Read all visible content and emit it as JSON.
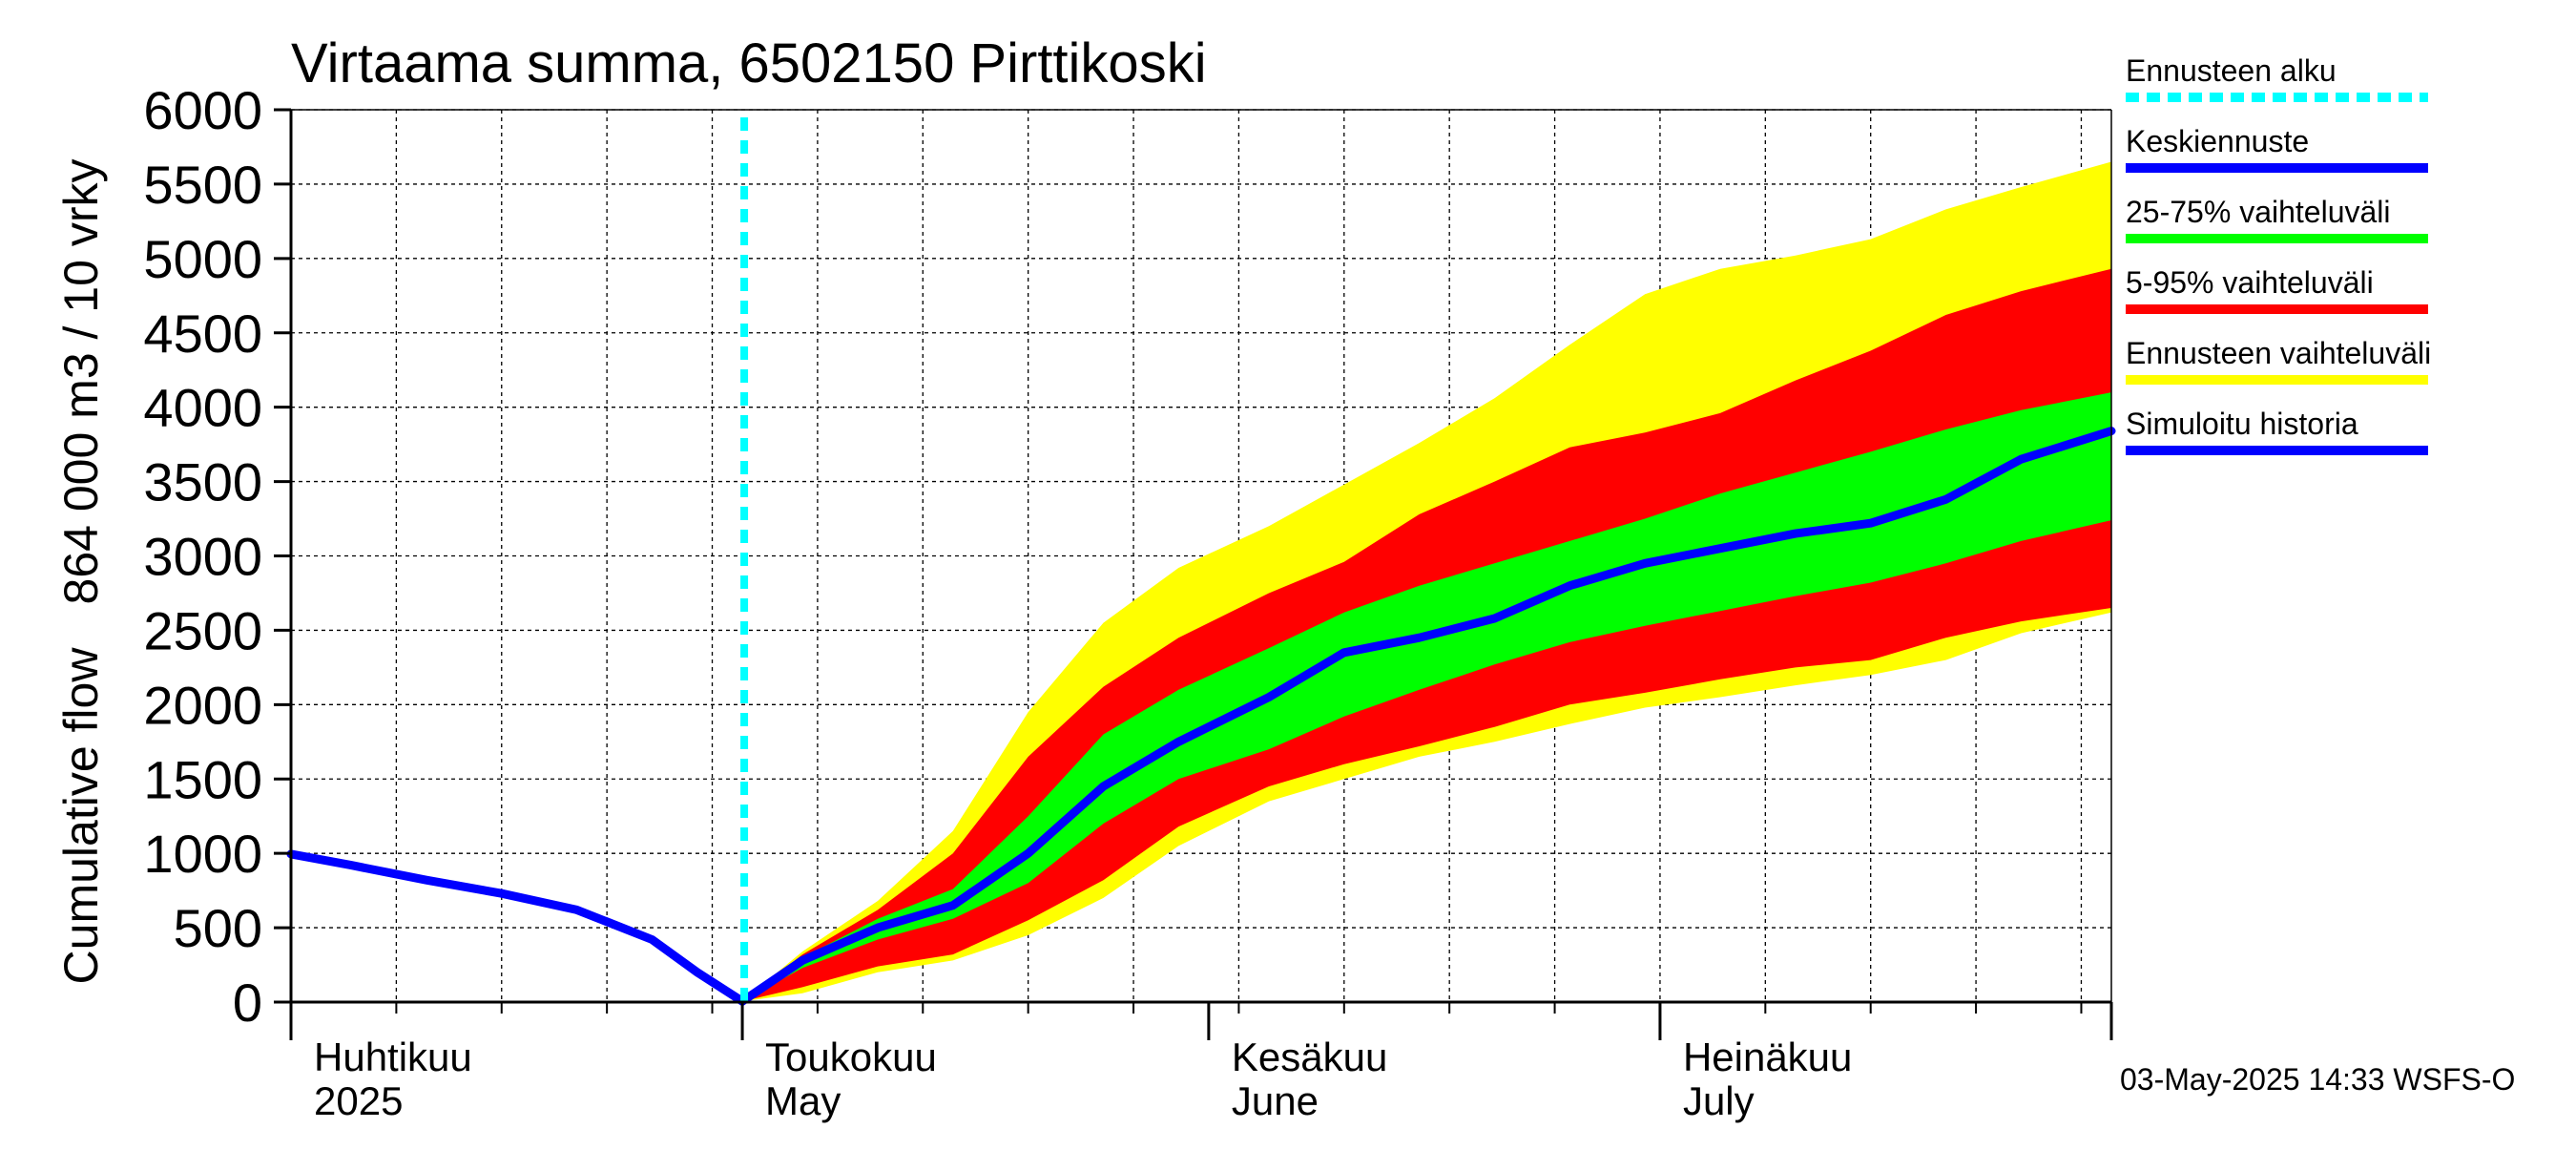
{
  "chart_data": {
    "type": "area",
    "title": "Virtaama summa, 6502150 Pirttikoski",
    "ylabel_line1": "Cumulative flow",
    "ylabel_line2": "864 000 m3 / 10 vrky",
    "ylim": [
      0,
      6000
    ],
    "y_ticks": [
      0,
      500,
      1000,
      1500,
      2000,
      2500,
      3000,
      3500,
      4000,
      4500,
      5000,
      5500,
      6000
    ],
    "x_range": [
      "2025-04-01",
      "2025-07-31"
    ],
    "grid": true,
    "months": [
      {
        "label_fi": "Huhtikuu",
        "label_en": "2025",
        "start": "2025-04-01"
      },
      {
        "label_fi": "Toukokuu",
        "label_en": "May",
        "start": "2025-05-01"
      },
      {
        "label_fi": "Kesäkuu",
        "label_en": "June",
        "start": "2025-06-01"
      },
      {
        "label_fi": "Heinäkuu",
        "label_en": "July",
        "start": "2025-07-01"
      }
    ],
    "forecast_start": "2025-05-01",
    "colors": {
      "forecast_start": "#00ffff",
      "mean": "#0000ff",
      "p25_75": "#00ff00",
      "p5_95": "#ff0000",
      "full_range": "#ffff00",
      "history": "#0000ff"
    },
    "simulated_history": {
      "dates": [
        "2025-04-01",
        "2025-04-05",
        "2025-04-10",
        "2025-04-15",
        "2025-04-20",
        "2025-04-25",
        "2025-04-28",
        "2025-05-01"
      ],
      "values": [
        995,
        920,
        820,
        730,
        620,
        420,
        200,
        5
      ]
    },
    "forecast": {
      "dates": [
        "2025-05-01",
        "2025-05-05",
        "2025-05-10",
        "2025-05-15",
        "2025-05-20",
        "2025-05-25",
        "2025-05-30",
        "2025-06-05",
        "2025-06-10",
        "2025-06-15",
        "2025-06-20",
        "2025-06-25",
        "2025-06-30",
        "2025-07-05",
        "2025-07-10",
        "2025-07-15",
        "2025-07-20",
        "2025-07-25",
        "2025-07-31"
      ],
      "mean": [
        5,
        280,
        500,
        650,
        1000,
        1450,
        1750,
        2050,
        2350,
        2450,
        2580,
        2800,
        2950,
        3050,
        3150,
        3220,
        3380,
        3650,
        3840
      ],
      "p25": [
        5,
        230,
        420,
        560,
        800,
        1200,
        1500,
        1700,
        1920,
        2100,
        2270,
        2420,
        2530,
        2630,
        2730,
        2820,
        2950,
        3100,
        3240
      ],
      "p75": [
        5,
        300,
        560,
        760,
        1250,
        1800,
        2100,
        2380,
        2620,
        2800,
        2950,
        3100,
        3250,
        3420,
        3560,
        3700,
        3850,
        3980,
        4100
      ],
      "p5": [
        5,
        100,
        240,
        320,
        550,
        820,
        1180,
        1450,
        1600,
        1720,
        1850,
        2000,
        2080,
        2170,
        2250,
        2300,
        2450,
        2560,
        2650
      ],
      "p95": [
        5,
        320,
        620,
        1000,
        1650,
        2120,
        2450,
        2750,
        2960,
        3280,
        3500,
        3730,
        3830,
        3960,
        4180,
        4380,
        4620,
        4780,
        4930
      ],
      "min": [
        5,
        60,
        200,
        280,
        450,
        700,
        1050,
        1350,
        1500,
        1650,
        1750,
        1870,
        1980,
        2050,
        2130,
        2200,
        2300,
        2480,
        2620
      ],
      "max": [
        5,
        340,
        680,
        1150,
        1950,
        2550,
        2920,
        3200,
        3480,
        3760,
        4060,
        4420,
        4760,
        4930,
        5020,
        5130,
        5330,
        5480,
        5650
      ]
    }
  },
  "legend": [
    {
      "label": "Ennusteen alku",
      "color": "#00ffff",
      "style": "dashed"
    },
    {
      "label": "Keskiennuste",
      "color": "#0000ff",
      "style": "solid"
    },
    {
      "label": "25-75% vaihteluväli",
      "color": "#00ff00",
      "style": "solid"
    },
    {
      "label": "5-95% vaihteluväli",
      "color": "#ff0000",
      "style": "solid"
    },
    {
      "label": "Ennusteen vaihteluväli",
      "color": "#ffff00",
      "style": "solid"
    },
    {
      "label": "Simuloitu historia",
      "color": "#0000ff",
      "style": "solid"
    }
  ],
  "footer": "03-May-2025 14:33 WSFS-O"
}
